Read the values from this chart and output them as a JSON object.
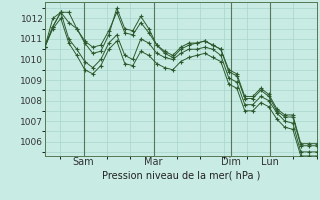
{
  "bg_color": "#c8ece4",
  "grid_color": "#a8d4cc",
  "line_color_dark": "#2d5a2d",
  "line_color_mid": "#3a7a3a",
  "title": "Pression niveau de la mer( hPa )",
  "ylabel_ticks": [
    1006,
    1007,
    1008,
    1009,
    1010,
    1011,
    1012
  ],
  "xlim": [
    0,
    35
  ],
  "ylim": [
    1005.3,
    1012.8
  ],
  "vlines_x": [
    5,
    14,
    24,
    29
  ],
  "vlines_labels": [
    "Sam",
    "Mar",
    "Dim",
    "Lun"
  ],
  "series": [
    [
      1010.6,
      1011.6,
      1012.3,
      1011.8,
      1011.5,
      1010.8,
      1010.3,
      1010.4,
      1011.2,
      1012.5,
      1011.5,
      1011.4,
      1012.1,
      1011.5,
      1010.7,
      1010.3,
      1010.1,
      1010.5,
      1010.7,
      1010.8,
      1010.9,
      1010.7,
      1010.5,
      1009.4,
      1009.2,
      1008.1,
      1008.1,
      1008.5,
      1008.2,
      1007.5,
      1007.2,
      1007.2,
      1005.8,
      1005.8,
      1005.8
    ],
    [
      1010.6,
      1011.6,
      1012.3,
      1011.0,
      1010.5,
      1009.9,
      1009.6,
      1010.0,
      1010.8,
      1011.2,
      1010.2,
      1010.0,
      1011.0,
      1010.8,
      1010.3,
      1010.1,
      1010.0,
      1010.3,
      1010.5,
      1010.5,
      1010.6,
      1010.5,
      1010.2,
      1009.1,
      1008.9,
      1007.8,
      1007.8,
      1008.2,
      1008.0,
      1007.4,
      1007.0,
      1006.9,
      1005.5,
      1005.5,
      1005.5
    ],
    [
      1010.6,
      1012.0,
      1012.3,
      1012.3,
      1011.5,
      1010.9,
      1010.6,
      1010.7,
      1011.4,
      1012.3,
      1011.3,
      1011.2,
      1011.8,
      1011.3,
      1010.7,
      1010.4,
      1010.2,
      1010.6,
      1010.8,
      1010.8,
      1010.9,
      1010.7,
      1010.5,
      1009.5,
      1009.3,
      1008.2,
      1008.2,
      1008.6,
      1008.3,
      1007.6,
      1007.3,
      1007.3,
      1005.9,
      1005.9,
      1005.9
    ],
    [
      1010.6,
      1011.5,
      1012.0,
      1010.8,
      1010.2,
      1009.5,
      1009.3,
      1009.7,
      1010.5,
      1010.9,
      1009.8,
      1009.7,
      1010.4,
      1010.2,
      1009.8,
      1009.6,
      1009.5,
      1009.9,
      1010.1,
      1010.2,
      1010.3,
      1010.1,
      1009.9,
      1008.8,
      1008.6,
      1007.5,
      1007.5,
      1007.9,
      1007.7,
      1007.1,
      1006.7,
      1006.6,
      1005.3,
      1005.3,
      1005.3
    ]
  ]
}
